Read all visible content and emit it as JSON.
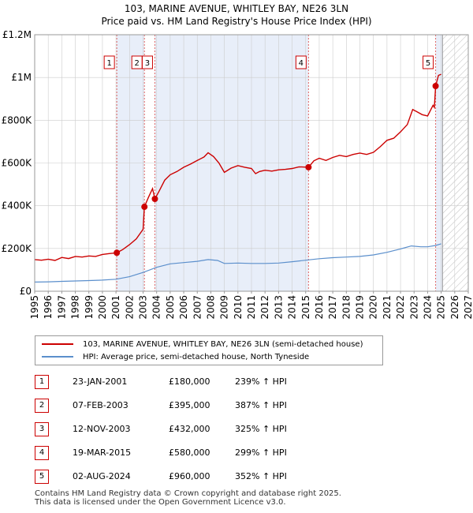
{
  "title_line1": "103, MARINE AVENUE, WHITLEY BAY, NE26 3LN",
  "title_line2": "Price paid vs. HM Land Registry's House Price Index (HPI)",
  "legend": {
    "property": "103, MARINE AVENUE, WHITLEY BAY, NE26 3LN (semi-detached house)",
    "hpi": "HPI: Average price, semi-detached house, North Tyneside"
  },
  "colors": {
    "property": "#cc0000",
    "hpi": "#5b8fcc",
    "band": "#e8eef9",
    "grid": "#cccccc"
  },
  "sales": [
    {
      "n": "1",
      "date": "23-JAN-2001",
      "price": "£180,000",
      "hpi": "239% ↑ HPI"
    },
    {
      "n": "2",
      "date": "07-FEB-2003",
      "price": "£395,000",
      "hpi": "387% ↑ HPI"
    },
    {
      "n": "3",
      "date": "12-NOV-2003",
      "price": "£432,000",
      "hpi": "325% ↑ HPI"
    },
    {
      "n": "4",
      "date": "19-MAR-2015",
      "price": "£580,000",
      "hpi": "299% ↑ HPI"
    },
    {
      "n": "5",
      "date": "02-AUG-2024",
      "price": "£960,000",
      "hpi": "352% ↑ HPI"
    }
  ],
  "footer": {
    "line1": "Contains HM Land Registry data © Crown copyright and database right 2025.",
    "line2": "This data is licensed under the Open Government Licence v3.0."
  },
  "chart_data": {
    "type": "line",
    "xlim": [
      1995,
      2027
    ],
    "ylim": [
      0,
      1200000
    ],
    "x_ticks": [
      1995,
      1996,
      1997,
      1998,
      1999,
      2000,
      2001,
      2002,
      2003,
      2004,
      2005,
      2006,
      2007,
      2008,
      2009,
      2010,
      2011,
      2012,
      2013,
      2014,
      2015,
      2016,
      2017,
      2018,
      2019,
      2020,
      2021,
      2022,
      2023,
      2024,
      2025,
      2026,
      2027
    ],
    "y_ticks": [
      {
        "value": 0,
        "label": "£0"
      },
      {
        "value": 200000,
        "label": "£200K"
      },
      {
        "value": 400000,
        "label": "£400K"
      },
      {
        "value": 600000,
        "label": "£600K"
      },
      {
        "value": 800000,
        "label": "£800K"
      },
      {
        "value": 1000000,
        "label": "£1M"
      },
      {
        "value": 1200000,
        "label": "£1.2M"
      }
    ],
    "grid": true,
    "legend_position": "bottom",
    "hatch_from": 2025.1,
    "sale_markers": [
      {
        "label": "1",
        "x": 2001.06,
        "y": 180000
      },
      {
        "label": "2",
        "x": 2003.1,
        "y": 395000
      },
      {
        "label": "3",
        "x": 2003.87,
        "y": 432000
      },
      {
        "label": "4",
        "x": 2015.21,
        "y": 580000
      },
      {
        "label": "5",
        "x": 2024.59,
        "y": 960000
      }
    ],
    "series": [
      {
        "name": "103, MARINE AVENUE, WHITLEY BAY, NE26 3LN (semi-detached house)",
        "x": [
          1995,
          1995.5,
          1996,
          1996.5,
          1997,
          1997.5,
          1998,
          1998.5,
          1999,
          1999.5,
          2000,
          2000.5,
          2001.06,
          2001.5,
          2002,
          2002.5,
          2003.0,
          2003.1,
          2003.4,
          2003.7,
          2003.87,
          2004.2,
          2004.6,
          2005,
          2005.5,
          2006,
          2006.5,
          2007,
          2007.5,
          2007.8,
          2008.2,
          2008.6,
          2009,
          2009.5,
          2010,
          2010.5,
          2011,
          2011.3,
          2011.6,
          2012,
          2012.5,
          2013,
          2013.5,
          2014,
          2014.5,
          2015.21,
          2015.6,
          2016,
          2016.5,
          2017,
          2017.5,
          2018,
          2018.5,
          2019,
          2019.5,
          2020,
          2020.5,
          2021,
          2021.5,
          2022,
          2022.5,
          2022.9,
          2023.2,
          2023.6,
          2024,
          2024.4,
          2024.5,
          2024.59,
          2024.8,
          2025.0
        ],
        "y": [
          148000,
          145000,
          150000,
          144000,
          158000,
          153000,
          163000,
          160000,
          165000,
          163000,
          172000,
          176000,
          180000,
          195000,
          218000,
          245000,
          290000,
          395000,
          440000,
          480000,
          432000,
          470000,
          520000,
          545000,
          560000,
          580000,
          595000,
          612000,
          628000,
          648000,
          630000,
          600000,
          556000,
          576000,
          588000,
          580000,
          574000,
          550000,
          560000,
          566000,
          562000,
          568000,
          570000,
          574000,
          582000,
          580000,
          610000,
          622000,
          612000,
          626000,
          636000,
          630000,
          640000,
          646000,
          640000,
          650000,
          676000,
          706000,
          716000,
          746000,
          780000,
          850000,
          840000,
          826000,
          820000,
          870000,
          860000,
          960000,
          1010000,
          1015000
        ]
      },
      {
        "name": "HPI: Average price, semi-detached house, North Tyneside",
        "x": [
          1995,
          1996,
          1997,
          1998,
          1999,
          2000,
          2001,
          2002,
          2003,
          2004,
          2005,
          2006,
          2007,
          2007.8,
          2008.5,
          2009,
          2010,
          2011,
          2012,
          2013,
          2014,
          2015,
          2016,
          2017,
          2018,
          2019,
          2020,
          2021,
          2022,
          2022.8,
          2023.5,
          2024,
          2024.6,
          2025.0
        ],
        "y": [
          43000,
          44000,
          46000,
          48000,
          50000,
          52000,
          56000,
          68000,
          88000,
          112000,
          128000,
          134000,
          140000,
          148000,
          144000,
          130000,
          132000,
          130000,
          130000,
          132000,
          138000,
          145000,
          152000,
          157000,
          160000,
          163000,
          170000,
          182000,
          198000,
          212000,
          208000,
          208000,
          214000,
          222000
        ]
      }
    ]
  }
}
